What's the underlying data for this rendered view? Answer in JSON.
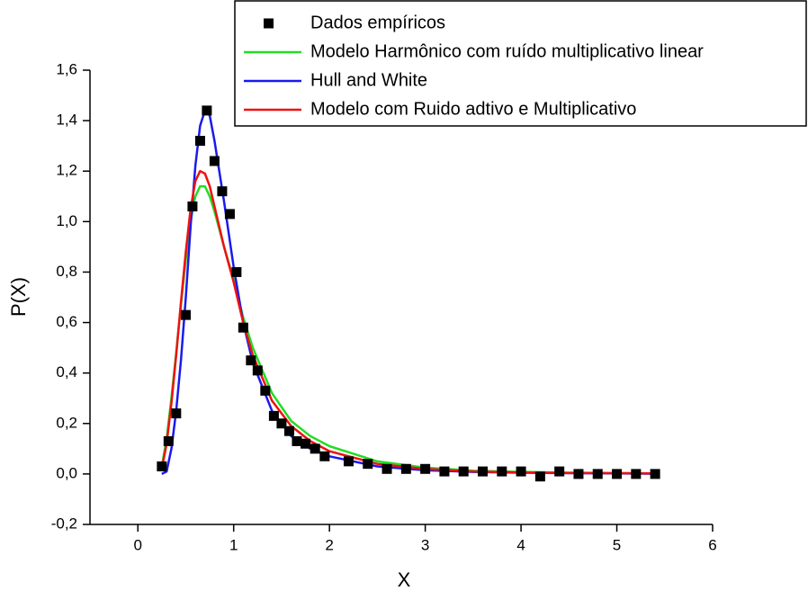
{
  "chart_data": {
    "type": "line",
    "xlabel": "X",
    "ylabel": "P(X)",
    "xlim": [
      -0.5,
      6
    ],
    "ylim": [
      -0.2,
      1.6
    ],
    "xticks": [
      0,
      1,
      2,
      3,
      4,
      5,
      6
    ],
    "yticks": [
      {
        "value": -0.2,
        "label": "-0,2"
      },
      {
        "value": 0,
        "label": "0,0"
      },
      {
        "value": 0.2,
        "label": "0,2"
      },
      {
        "value": 0.4,
        "label": "0,4"
      },
      {
        "value": 0.6,
        "label": "0,6"
      },
      {
        "value": 0.8,
        "label": "0,8"
      },
      {
        "value": 1.0,
        "label": "1,0"
      },
      {
        "value": 1.2,
        "label": "1,2"
      },
      {
        "value": 1.4,
        "label": "1,4"
      },
      {
        "value": 1.6,
        "label": "1,6"
      }
    ],
    "grid": false,
    "legend": "upper right",
    "series": [
      {
        "name": "Dados empíricos",
        "color": "#000000",
        "type": "scatter",
        "marker": "square",
        "x": [
          0.25,
          0.32,
          0.4,
          0.5,
          0.57,
          0.65,
          0.72,
          0.8,
          0.88,
          0.96,
          1.03,
          1.1,
          1.18,
          1.25,
          1.33,
          1.42,
          1.5,
          1.58,
          1.66,
          1.75,
          1.85,
          1.95,
          2.2,
          2.4,
          2.6,
          2.8,
          3.0,
          3.2,
          3.4,
          3.6,
          3.8,
          4.0,
          4.2,
          4.4,
          4.6,
          4.8,
          5.0,
          5.2,
          5.4
        ],
        "values": [
          0.03,
          0.13,
          0.24,
          0.63,
          1.06,
          1.32,
          1.44,
          1.24,
          1.12,
          1.03,
          0.8,
          0.58,
          0.45,
          0.41,
          0.33,
          0.23,
          0.2,
          0.17,
          0.13,
          0.12,
          0.1,
          0.07,
          0.05,
          0.04,
          0.02,
          0.02,
          0.02,
          0.01,
          0.01,
          0.01,
          0.01,
          0.01,
          -0.01,
          0.01,
          0.0,
          0.0,
          0.0,
          0.0,
          0.0
        ]
      },
      {
        "name": "Modelo Harmônico com ruído multiplicativo linear",
        "color": "#22dd22",
        "type": "line",
        "x": [
          0.25,
          0.3,
          0.35,
          0.4,
          0.45,
          0.5,
          0.55,
          0.6,
          0.65,
          0.7,
          0.75,
          0.8,
          0.9,
          1.0,
          1.1,
          1.2,
          1.4,
          1.6,
          1.8,
          2.0,
          2.5,
          3.0,
          3.5,
          4.0,
          4.5,
          5.0,
          5.4
        ],
        "values": [
          0.03,
          0.14,
          0.3,
          0.48,
          0.67,
          0.85,
          1.0,
          1.1,
          1.14,
          1.14,
          1.1,
          1.04,
          0.9,
          0.77,
          0.62,
          0.5,
          0.32,
          0.21,
          0.15,
          0.11,
          0.05,
          0.025,
          0.013,
          0.008,
          0.005,
          0.003,
          0.002
        ]
      },
      {
        "name": "Hull and White",
        "color": "#1a1aee",
        "type": "line",
        "x": [
          0.25,
          0.3,
          0.35,
          0.4,
          0.45,
          0.5,
          0.55,
          0.6,
          0.65,
          0.7,
          0.75,
          0.8,
          0.9,
          1.0,
          1.1,
          1.2,
          1.4,
          1.6,
          1.8,
          2.0,
          2.5,
          3.0,
          3.5,
          4.0,
          4.5,
          5.0,
          5.4
        ],
        "values": [
          0.0,
          0.01,
          0.1,
          0.25,
          0.45,
          0.7,
          0.98,
          1.22,
          1.38,
          1.44,
          1.42,
          1.32,
          1.08,
          0.82,
          0.6,
          0.44,
          0.25,
          0.15,
          0.1,
          0.07,
          0.03,
          0.015,
          0.008,
          0.005,
          0.003,
          0.002,
          0.001
        ]
      },
      {
        "name": "Modelo com Ruido adtivo e Multiplicativo",
        "color": "#ee1111",
        "type": "line",
        "x": [
          0.25,
          0.3,
          0.35,
          0.4,
          0.45,
          0.5,
          0.55,
          0.6,
          0.65,
          0.7,
          0.75,
          0.8,
          0.9,
          1.0,
          1.1,
          1.2,
          1.4,
          1.6,
          1.8,
          2.0,
          2.5,
          3.0,
          3.5,
          4.0,
          4.5,
          5.0,
          5.4
        ],
        "values": [
          0.02,
          0.12,
          0.28,
          0.47,
          0.68,
          0.88,
          1.05,
          1.16,
          1.2,
          1.19,
          1.14,
          1.06,
          0.9,
          0.76,
          0.6,
          0.47,
          0.29,
          0.19,
          0.13,
          0.09,
          0.04,
          0.02,
          0.01,
          0.006,
          0.004,
          0.003,
          0.002
        ]
      }
    ]
  }
}
